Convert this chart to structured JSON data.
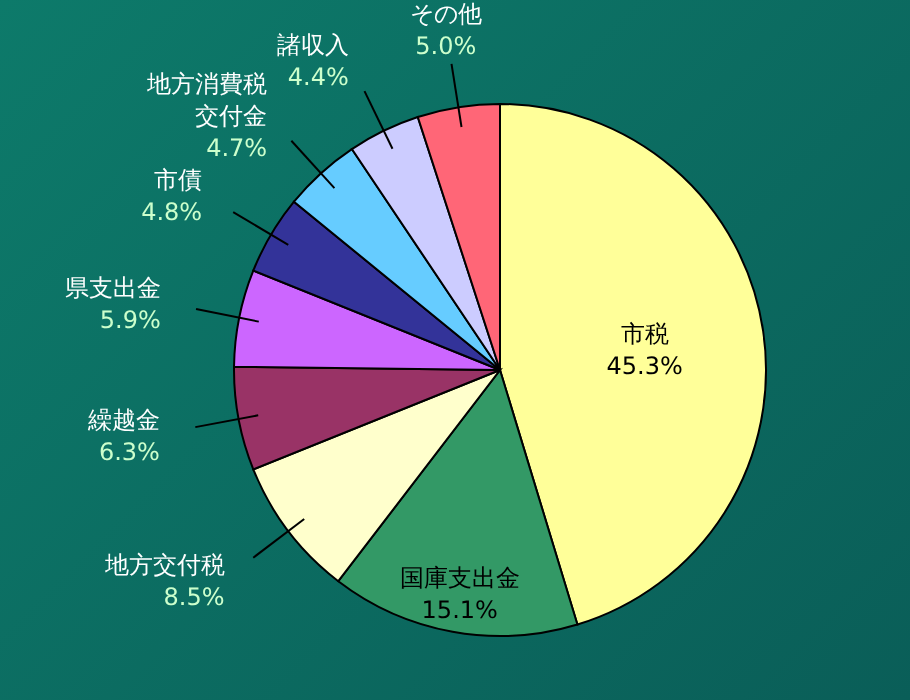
{
  "chart_data": {
    "type": "pie",
    "categories": [
      "市税",
      "国庫支出金",
      "地方交付税",
      "繰越金",
      "県支出金",
      "市債",
      "地方消費税交付金",
      "諸収入",
      "その他"
    ],
    "values": [
      45.3,
      15.1,
      8.5,
      6.3,
      5.9,
      4.8,
      4.7,
      4.4,
      5.0
    ],
    "value_labels": [
      "45.3%",
      "15.1%",
      "8.5%",
      "6.3%",
      "5.9%",
      "4.8%",
      "4.7%",
      "4.4%",
      "5.0%"
    ],
    "colors": [
      "#ffff99",
      "#339966",
      "#ffffcc",
      "#993366",
      "#cc66ff",
      "#333399",
      "#66ccff",
      "#ccccff",
      "#ff6677"
    ]
  }
}
